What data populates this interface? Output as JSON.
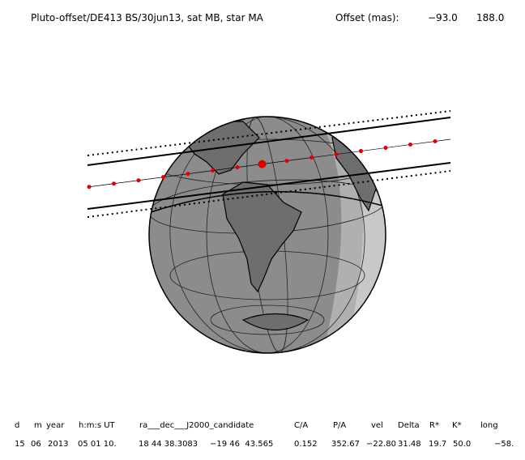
{
  "header": {
    "title": "Pluto-offset/DE413 BS/30jun13, sat MB, star MA",
    "offset_label": "Offset (mas):",
    "offset_values": [
      "−93.0",
      "188.0"
    ]
  },
  "table": {
    "columns": [
      "d",
      "m",
      "year",
      "h:m:s UT",
      "ra___dec___J2000_candidate",
      "C/A",
      "P/A",
      "vel",
      "Delta",
      "R*",
      "K*",
      "long"
    ],
    "rows": [
      [
        "15",
        "06",
        "2013",
        "05 01 10.",
        "18 44 38.3083",
        "−19 46  43.565",
        "0.152",
        "352.67",
        "−22.80",
        "31.48",
        "19.7",
        "50.0",
        "−58."
      ]
    ]
  }
}
